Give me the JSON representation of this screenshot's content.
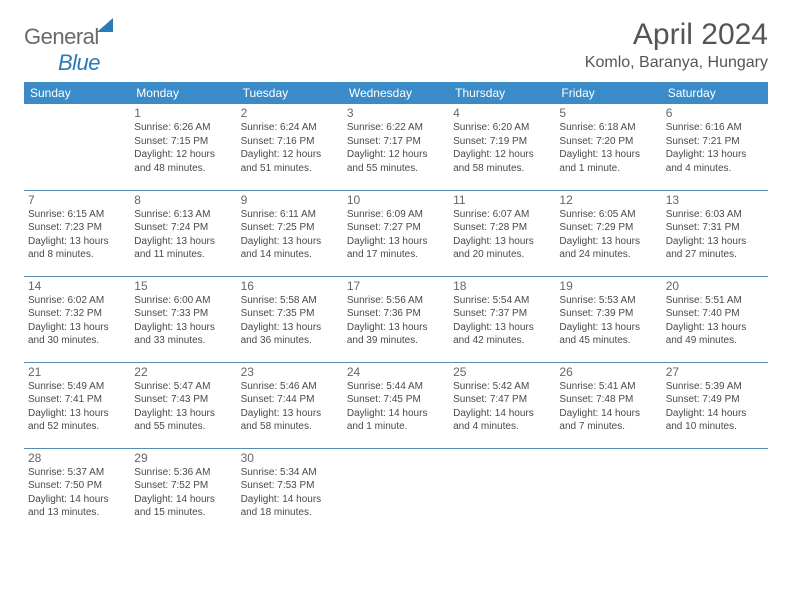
{
  "brand": {
    "part1": "General",
    "part2": "Blue"
  },
  "title": "April 2024",
  "location": "Komlo, Baranya, Hungary",
  "colors": {
    "header_bg": "#3b8bc8",
    "header_text": "#ffffff",
    "rule": "#5a8caf",
    "body_text": "#4a4a4a",
    "brand_blue": "#2a7ab8"
  },
  "weekdays": [
    "Sunday",
    "Monday",
    "Tuesday",
    "Wednesday",
    "Thursday",
    "Friday",
    "Saturday"
  ],
  "weeks": [
    [
      null,
      {
        "n": "1",
        "sr": "6:26 AM",
        "ss": "7:15 PM",
        "dl": "12 hours and 48 minutes."
      },
      {
        "n": "2",
        "sr": "6:24 AM",
        "ss": "7:16 PM",
        "dl": "12 hours and 51 minutes."
      },
      {
        "n": "3",
        "sr": "6:22 AM",
        "ss": "7:17 PM",
        "dl": "12 hours and 55 minutes."
      },
      {
        "n": "4",
        "sr": "6:20 AM",
        "ss": "7:19 PM",
        "dl": "12 hours and 58 minutes."
      },
      {
        "n": "5",
        "sr": "6:18 AM",
        "ss": "7:20 PM",
        "dl": "13 hours and 1 minute."
      },
      {
        "n": "6",
        "sr": "6:16 AM",
        "ss": "7:21 PM",
        "dl": "13 hours and 4 minutes."
      }
    ],
    [
      {
        "n": "7",
        "sr": "6:15 AM",
        "ss": "7:23 PM",
        "dl": "13 hours and 8 minutes."
      },
      {
        "n": "8",
        "sr": "6:13 AM",
        "ss": "7:24 PM",
        "dl": "13 hours and 11 minutes."
      },
      {
        "n": "9",
        "sr": "6:11 AM",
        "ss": "7:25 PM",
        "dl": "13 hours and 14 minutes."
      },
      {
        "n": "10",
        "sr": "6:09 AM",
        "ss": "7:27 PM",
        "dl": "13 hours and 17 minutes."
      },
      {
        "n": "11",
        "sr": "6:07 AM",
        "ss": "7:28 PM",
        "dl": "13 hours and 20 minutes."
      },
      {
        "n": "12",
        "sr": "6:05 AM",
        "ss": "7:29 PM",
        "dl": "13 hours and 24 minutes."
      },
      {
        "n": "13",
        "sr": "6:03 AM",
        "ss": "7:31 PM",
        "dl": "13 hours and 27 minutes."
      }
    ],
    [
      {
        "n": "14",
        "sr": "6:02 AM",
        "ss": "7:32 PM",
        "dl": "13 hours and 30 minutes."
      },
      {
        "n": "15",
        "sr": "6:00 AM",
        "ss": "7:33 PM",
        "dl": "13 hours and 33 minutes."
      },
      {
        "n": "16",
        "sr": "5:58 AM",
        "ss": "7:35 PM",
        "dl": "13 hours and 36 minutes."
      },
      {
        "n": "17",
        "sr": "5:56 AM",
        "ss": "7:36 PM",
        "dl": "13 hours and 39 minutes."
      },
      {
        "n": "18",
        "sr": "5:54 AM",
        "ss": "7:37 PM",
        "dl": "13 hours and 42 minutes."
      },
      {
        "n": "19",
        "sr": "5:53 AM",
        "ss": "7:39 PM",
        "dl": "13 hours and 45 minutes."
      },
      {
        "n": "20",
        "sr": "5:51 AM",
        "ss": "7:40 PM",
        "dl": "13 hours and 49 minutes."
      }
    ],
    [
      {
        "n": "21",
        "sr": "5:49 AM",
        "ss": "7:41 PM",
        "dl": "13 hours and 52 minutes."
      },
      {
        "n": "22",
        "sr": "5:47 AM",
        "ss": "7:43 PM",
        "dl": "13 hours and 55 minutes."
      },
      {
        "n": "23",
        "sr": "5:46 AM",
        "ss": "7:44 PM",
        "dl": "13 hours and 58 minutes."
      },
      {
        "n": "24",
        "sr": "5:44 AM",
        "ss": "7:45 PM",
        "dl": "14 hours and 1 minute."
      },
      {
        "n": "25",
        "sr": "5:42 AM",
        "ss": "7:47 PM",
        "dl": "14 hours and 4 minutes."
      },
      {
        "n": "26",
        "sr": "5:41 AM",
        "ss": "7:48 PM",
        "dl": "14 hours and 7 minutes."
      },
      {
        "n": "27",
        "sr": "5:39 AM",
        "ss": "7:49 PM",
        "dl": "14 hours and 10 minutes."
      }
    ],
    [
      {
        "n": "28",
        "sr": "5:37 AM",
        "ss": "7:50 PM",
        "dl": "14 hours and 13 minutes."
      },
      {
        "n": "29",
        "sr": "5:36 AM",
        "ss": "7:52 PM",
        "dl": "14 hours and 15 minutes."
      },
      {
        "n": "30",
        "sr": "5:34 AM",
        "ss": "7:53 PM",
        "dl": "14 hours and 18 minutes."
      },
      null,
      null,
      null,
      null
    ]
  ],
  "labels": {
    "sunrise": "Sunrise:",
    "sunset": "Sunset:",
    "daylight": "Daylight:"
  }
}
